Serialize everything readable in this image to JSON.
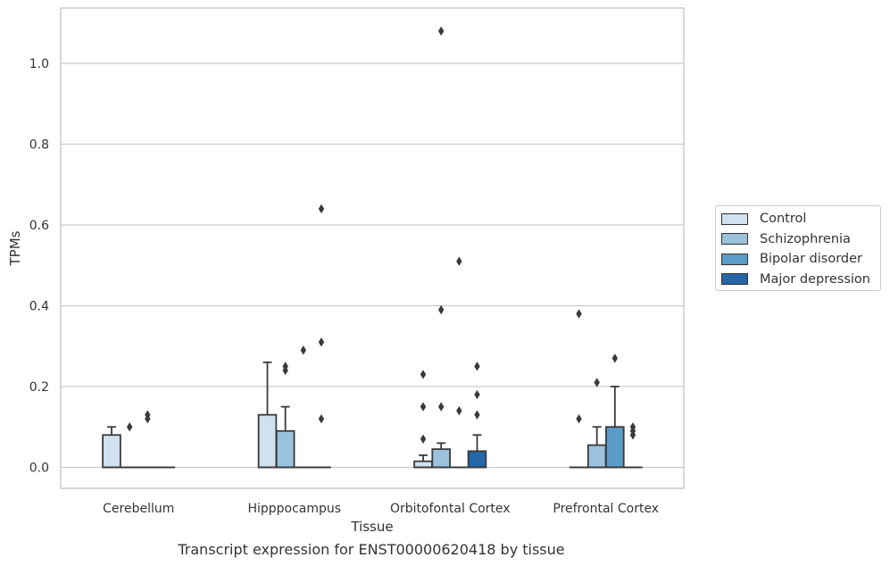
{
  "chart_data": {
    "type": "box",
    "title": "Transcript expression for ENST00000620418 by tissue",
    "xlabel": "Tissue",
    "ylabel": "TPMs",
    "ylim": [
      -0.052,
      1.137
    ],
    "yticks": [
      "0.0",
      "0.2",
      "0.4",
      "0.6",
      "0.8",
      "1.0"
    ],
    "ytick_values": [
      0,
      0.2,
      0.4,
      0.6,
      0.8,
      1.0
    ],
    "grid": true,
    "legend_position": "right",
    "categories": [
      "Cerebellum",
      "Hipppocampus",
      "Orbitofontal Cortex",
      "Prefrontal Cortex"
    ],
    "series": [
      {
        "name": "Control",
        "color": "#d0e1f0",
        "boxes": [
          {
            "q1": 0,
            "median": 0,
            "q3": 0.08,
            "whisker_low": 0,
            "whisker_high": 0.1,
            "outliers": []
          },
          {
            "q1": 0,
            "median": 0,
            "q3": 0.13,
            "whisker_low": 0,
            "whisker_high": 0.26,
            "outliers": []
          },
          {
            "q1": 0,
            "median": 0,
            "q3": 0.015,
            "whisker_low": 0,
            "whisker_high": 0.03,
            "outliers": [
              0.07,
              0.15,
              0.23
            ]
          },
          {
            "q1": 0,
            "median": 0,
            "q3": 0,
            "whisker_low": 0,
            "whisker_high": 0,
            "outliers": [
              0.12,
              0.38
            ]
          }
        ]
      },
      {
        "name": "Schizophrenia",
        "color": "#9ac2dc",
        "boxes": [
          {
            "q1": 0,
            "median": 0,
            "q3": 0,
            "whisker_low": 0,
            "whisker_high": 0,
            "outliers": [
              0.1
            ]
          },
          {
            "q1": 0,
            "median": 0,
            "q3": 0.09,
            "whisker_low": 0,
            "whisker_high": 0.15,
            "outliers": [
              0.24,
              0.25
            ]
          },
          {
            "q1": 0,
            "median": 0,
            "q3": 0.045,
            "whisker_low": 0,
            "whisker_high": 0.06,
            "outliers": [
              0.15,
              0.39,
              1.08
            ]
          },
          {
            "q1": 0,
            "median": 0,
            "q3": 0.055,
            "whisker_low": 0,
            "whisker_high": 0.1,
            "outliers": [
              0.21
            ]
          }
        ]
      },
      {
        "name": "Bipolar disorder",
        "color": "#5a9bc7",
        "boxes": [
          {
            "q1": 0,
            "median": 0,
            "q3": 0,
            "whisker_low": 0,
            "whisker_high": 0,
            "outliers": [
              0.12,
              0.13
            ]
          },
          {
            "q1": 0,
            "median": 0,
            "q3": 0,
            "whisker_low": 0,
            "whisker_high": 0,
            "outliers": [
              0.29
            ]
          },
          {
            "q1": 0,
            "median": 0,
            "q3": 0,
            "whisker_low": 0,
            "whisker_high": 0,
            "outliers": [
              0.14,
              0.51
            ]
          },
          {
            "q1": 0,
            "median": 0,
            "q3": 0.1,
            "whisker_low": 0,
            "whisker_high": 0.2,
            "outliers": [
              0.27
            ]
          }
        ]
      },
      {
        "name": "Major depression",
        "color": "#2466a8",
        "boxes": [
          {
            "q1": 0,
            "median": 0,
            "q3": 0,
            "whisker_low": 0,
            "whisker_high": 0,
            "outliers": []
          },
          {
            "q1": 0,
            "median": 0,
            "q3": 0,
            "whisker_low": 0,
            "whisker_high": 0,
            "outliers": [
              0.12,
              0.31,
              0.64
            ]
          },
          {
            "q1": 0,
            "median": 0,
            "q3": 0.04,
            "whisker_low": 0,
            "whisker_high": 0.08,
            "outliers": [
              0.13,
              0.18,
              0.25
            ]
          },
          {
            "q1": 0,
            "median": 0,
            "q3": 0,
            "whisker_low": 0,
            "whisker_high": 0,
            "outliers": [
              0.08,
              0.09,
              0.1
            ]
          }
        ]
      }
    ]
  }
}
